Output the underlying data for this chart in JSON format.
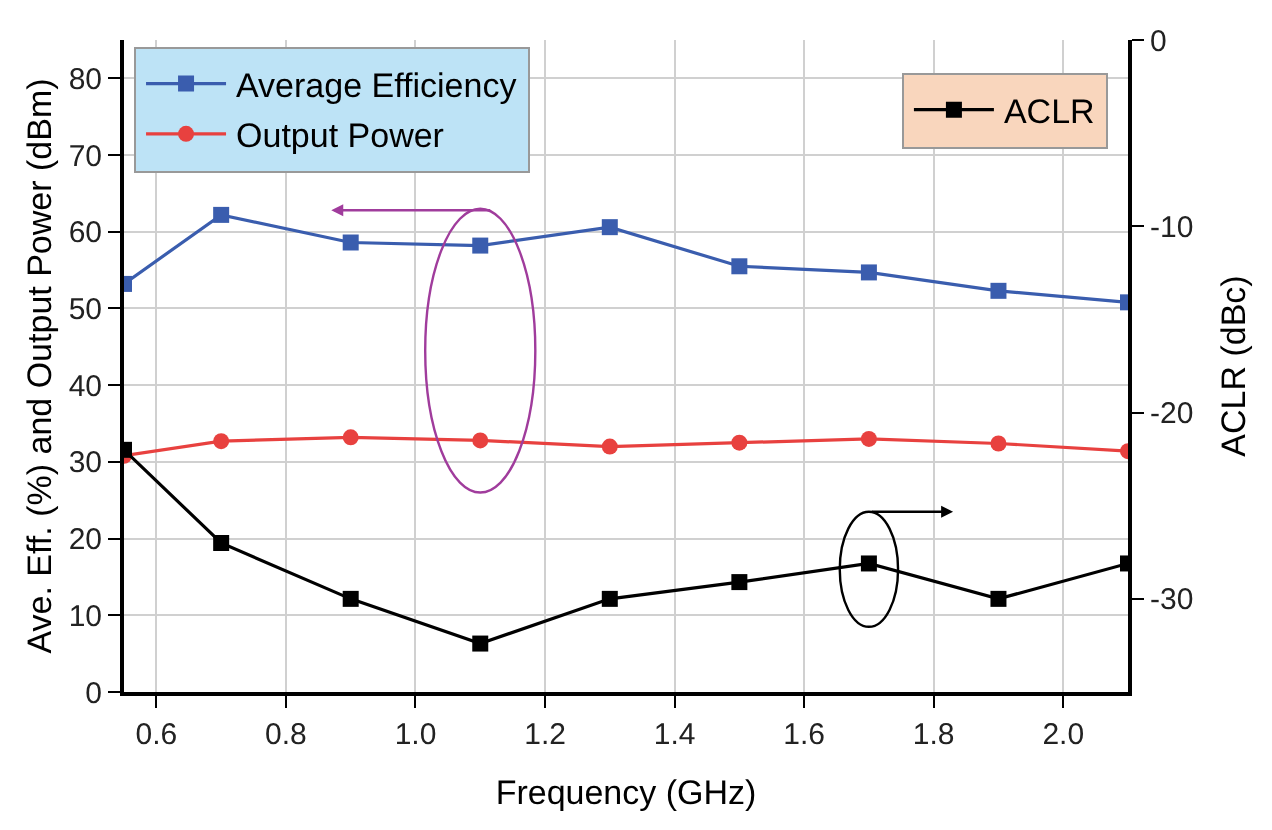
{
  "chart_data": {
    "type": "line",
    "xlabel": "Frequency (GHz)",
    "ylabel": "Ave. Eff. (%) and Output Power (dBm)",
    "y2label": "ACLR (dBc)",
    "x": [
      0.55,
      0.7,
      0.9,
      1.1,
      1.3,
      1.5,
      1.7,
      1.9,
      2.1
    ],
    "xlim": [
      0.55,
      2.1
    ],
    "xticks": [
      {
        "value": 0.6,
        "label": "0.6"
      },
      {
        "value": 0.8,
        "label": "0.8"
      },
      {
        "value": 1.0,
        "label": "1.0"
      },
      {
        "value": 1.2,
        "label": "1.2"
      },
      {
        "value": 1.4,
        "label": "1.4"
      },
      {
        "value": 1.6,
        "label": "1.6"
      },
      {
        "value": 1.8,
        "label": "1.8"
      },
      {
        "value": 2.0,
        "label": "2.0"
      }
    ],
    "ylim": [
      0,
      85
    ],
    "yticks": [
      0,
      10,
      20,
      30,
      40,
      50,
      60,
      70,
      80
    ],
    "y2lim": [
      -35,
      0
    ],
    "y2ticks": [
      -30,
      -20,
      -10,
      0
    ],
    "series": [
      {
        "name": "Average Efficiency",
        "color": "#3a5dae",
        "marker": "square",
        "values": [
          53.2,
          62.2,
          58.6,
          58.2,
          60.6,
          55.5,
          54.7,
          52.3,
          50.8
        ]
      },
      {
        "name": "Output Power",
        "color": "#e8413f",
        "marker": "circle",
        "values": [
          30.8,
          32.7,
          33.2,
          32.8,
          32.0,
          32.5,
          33.0,
          32.4,
          31.4
        ]
      },
      {
        "name": "ACLR",
        "color": "#000000",
        "marker": "square",
        "axis": "y2",
        "values": [
          -22.0,
          -27.0,
          -30.0,
          -32.4,
          -30.0,
          -29.1,
          -28.1,
          -30.0,
          -28.1
        ]
      }
    ],
    "grid": true,
    "legend": "top left"
  }
}
